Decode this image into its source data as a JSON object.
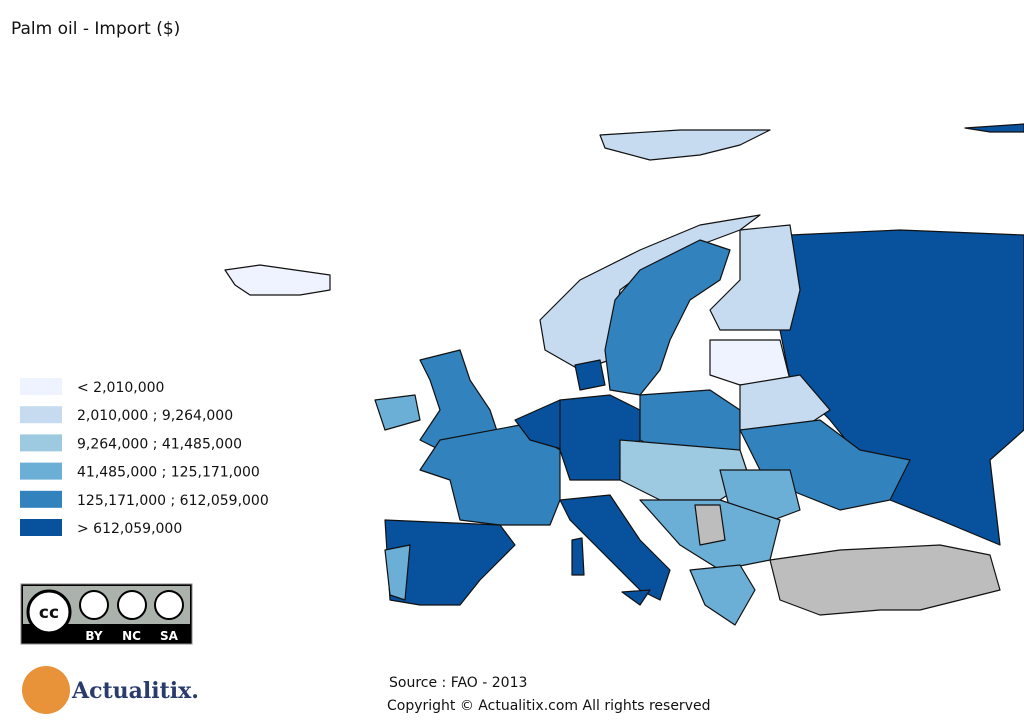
{
  "title": "Palm oil - Import ($)",
  "legend": [
    {
      "label": "< 2,010,000",
      "color": "#eff3ff"
    },
    {
      "label": "2,010,000 ; 9,264,000",
      "color": "#c6dbef"
    },
    {
      "label": "9,264,000 ; 41,485,000",
      "color": "#9ecae1"
    },
    {
      "label": "41,485,000 ; 125,171,000",
      "color": "#6baed6"
    },
    {
      "label": "125,171,000 ; 612,059,000",
      "color": "#3182bd"
    },
    {
      "label": "> 612,059,000",
      "color": "#08519c"
    }
  ],
  "license": {
    "badge": "cc",
    "labels": [
      "BY",
      "NC",
      "SA"
    ]
  },
  "logo": "Actualitix.",
  "source": "Source : FAO - 2013",
  "copyright": "Copyright © Actualitix.com All rights reserved"
}
